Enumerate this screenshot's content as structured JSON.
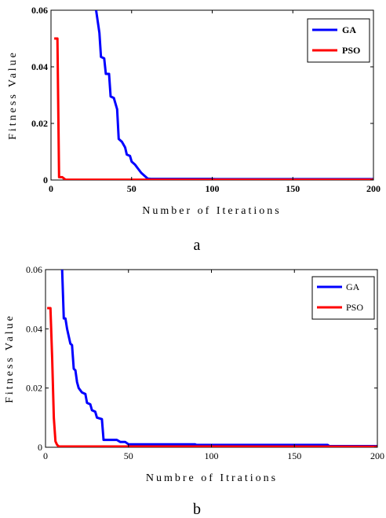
{
  "chart_data": [
    {
      "type": "line",
      "panel_label": "a",
      "xlabel": "Number of Iterations",
      "ylabel": "Fitness Value",
      "xlim": [
        0,
        200
      ],
      "ylim": [
        0,
        0.06
      ],
      "x_ticks": [
        "0",
        "50",
        "100",
        "150",
        "200"
      ],
      "y_ticks": [
        "0",
        "0.02",
        "0.04",
        "0.06"
      ],
      "grid": false,
      "legend_position": "top-right",
      "series": [
        {
          "name": "GA",
          "color": "#0000ff",
          "points": [
            [
              28,
              0.06
            ],
            [
              30,
              0.052
            ],
            [
              31,
              0.0435
            ],
            [
              33,
              0.043
            ],
            [
              34,
              0.0375
            ],
            [
              36,
              0.0375
            ],
            [
              37,
              0.0295
            ],
            [
              39,
              0.029
            ],
            [
              40,
              0.027
            ],
            [
              41,
              0.025
            ],
            [
              42,
              0.0145
            ],
            [
              44,
              0.0135
            ],
            [
              46,
              0.0115
            ],
            [
              47,
              0.009
            ],
            [
              49,
              0.0085
            ],
            [
              50,
              0.0065
            ],
            [
              52,
              0.0055
            ],
            [
              54,
              0.004
            ],
            [
              56,
              0.0025
            ],
            [
              58,
              0.0015
            ],
            [
              60,
              0.0005
            ],
            [
              62,
              0.0004
            ],
            [
              100,
              0.0004
            ],
            [
              102,
              0.0003
            ],
            [
              200,
              0.0003
            ]
          ]
        },
        {
          "name": "PSO",
          "color": "#ff0000",
          "points": [
            [
              2,
              0.05
            ],
            [
              4,
              0.05
            ],
            [
              5,
              0.001
            ],
            [
              7,
              0.001
            ],
            [
              9,
              0.0001
            ],
            [
              200,
              0.0001
            ]
          ]
        }
      ]
    },
    {
      "type": "line",
      "panel_label": "b",
      "xlabel": "Numbre of Itrations",
      "ylabel": "Fitness Value",
      "xlim": [
        0,
        200
      ],
      "ylim": [
        0,
        0.06
      ],
      "x_ticks": [
        "0",
        "50",
        "100",
        "150",
        "200"
      ],
      "y_ticks": [
        "0",
        "0.02",
        "0.04",
        "0.06"
      ],
      "grid": false,
      "legend_position": "top-right",
      "series": [
        {
          "name": "GA",
          "color": "#0000ff",
          "points": [
            [
              10,
              0.06
            ],
            [
              11,
              0.0435
            ],
            [
              12,
              0.0435
            ],
            [
              13,
              0.04
            ],
            [
              14,
              0.0375
            ],
            [
              15,
              0.035
            ],
            [
              16,
              0.0345
            ],
            [
              17,
              0.0265
            ],
            [
              18,
              0.026
            ],
            [
              19,
              0.022
            ],
            [
              20,
              0.02
            ],
            [
              22,
              0.0185
            ],
            [
              24,
              0.018
            ],
            [
              25,
              0.015
            ],
            [
              27,
              0.0145
            ],
            [
              28,
              0.0125
            ],
            [
              30,
              0.012
            ],
            [
              31,
              0.01
            ],
            [
              34,
              0.0095
            ],
            [
              35,
              0.0025
            ],
            [
              43,
              0.0025
            ],
            [
              45,
              0.0018
            ],
            [
              48,
              0.0018
            ],
            [
              50,
              0.001
            ],
            [
              90,
              0.001
            ],
            [
              91,
              0.0008
            ],
            [
              170,
              0.0008
            ],
            [
              171,
              0.0004
            ],
            [
              200,
              0.0004
            ]
          ]
        },
        {
          "name": "PSO",
          "color": "#ff0000",
          "points": [
            [
              1,
              0.047
            ],
            [
              3,
              0.047
            ],
            [
              4,
              0.03
            ],
            [
              5,
              0.01
            ],
            [
              6,
              0.002
            ],
            [
              7,
              0.0008
            ],
            [
              8,
              0.0003
            ],
            [
              200,
              0.0002
            ]
          ]
        }
      ]
    }
  ]
}
